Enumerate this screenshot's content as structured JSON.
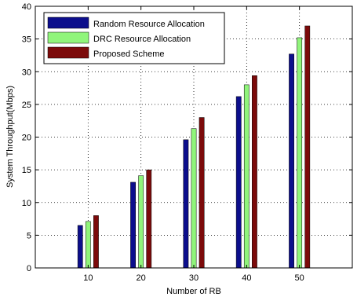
{
  "chart_data": {
    "type": "bar",
    "title": "",
    "xlabel": "Number of RB",
    "ylabel": "System Throughput(Mbps)",
    "categories": [
      "10",
      "20",
      "30",
      "40",
      "50"
    ],
    "ylim": [
      0,
      40
    ],
    "yticks": [
      0,
      5,
      10,
      15,
      20,
      25,
      30,
      35,
      40
    ],
    "grid": true,
    "legend_position": "top-left",
    "series": [
      {
        "name": "Random Resource Allocation",
        "color": "#0c0e8c",
        "values": [
          6.5,
          13.1,
          19.6,
          26.2,
          32.7
        ]
      },
      {
        "name": "DRC Resource Allocation",
        "color": "#90f57b",
        "values": [
          7.1,
          14.1,
          21.3,
          28.0,
          35.2
        ]
      },
      {
        "name": "Proposed Scheme",
        "color": "#7c0a0a",
        "values": [
          8.0,
          15.0,
          23.0,
          29.4,
          37.0
        ]
      }
    ]
  }
}
